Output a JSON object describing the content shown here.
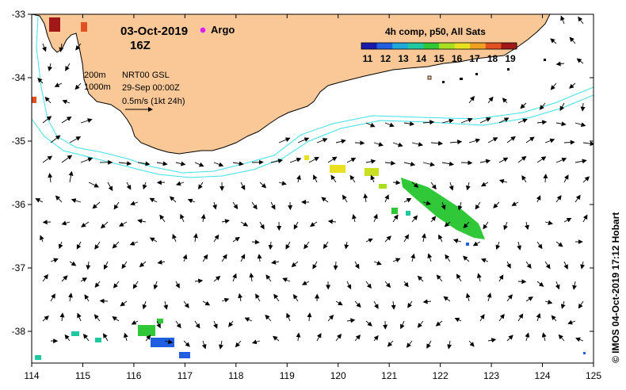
{
  "title": {
    "date": "03-Oct-2019",
    "hour": "16Z",
    "argo_label": "Argo"
  },
  "legend": {
    "colorbar_title": "4h comp, p50, All Sats",
    "colorbar_ticks": [
      "11",
      "12",
      "13",
      "14",
      "15",
      "16",
      "17",
      "18",
      "19"
    ],
    "contours": [
      "200m",
      "1000m"
    ],
    "product": "NRT00 GSL",
    "product_time": "29-Sep 00:00Z",
    "vector_scale": "0.5m/s (1kt 24h)"
  },
  "credit": "© IMOS 04-Oct-2019 17:12 Hobart",
  "axes": {
    "x_ticks": [
      "114",
      "115",
      "116",
      "117",
      "118",
      "119",
      "120",
      "121",
      "122",
      "123",
      "124",
      "125"
    ],
    "y_ticks": [
      "-33",
      "-34",
      "-35",
      "-36",
      "-37",
      "-38"
    ]
  },
  "colors": {
    "land": "#f9c896",
    "coast": "#000000",
    "contour": "#3fe0e8",
    "argo": "#e020e0"
  },
  "colorbar_colors": [
    "#1a1aa8",
    "#1f5fe0",
    "#20a8d8",
    "#20c8a0",
    "#30c838",
    "#a8e020",
    "#e8e020",
    "#f0a020",
    "#e05020",
    "#a01818"
  ]
}
